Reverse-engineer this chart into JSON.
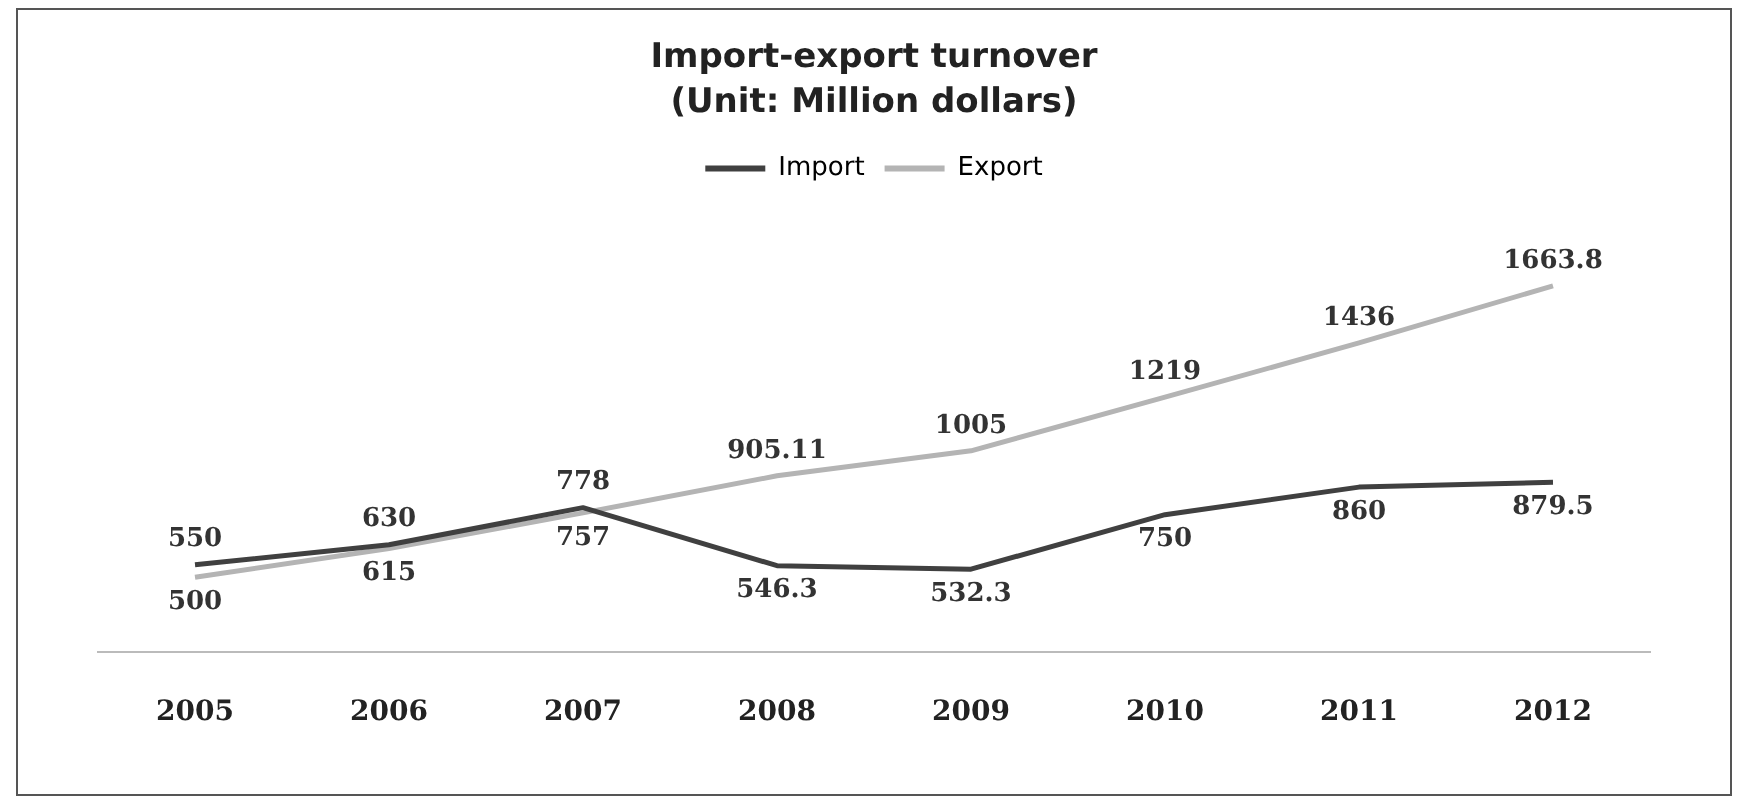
{
  "chart_data": {
    "type": "line",
    "title": "Import-export turnover",
    "subtitle": "(Unit: Million dollars)",
    "categories": [
      "2005",
      "2006",
      "2007",
      "2008",
      "2009",
      "2010",
      "2011",
      "2012"
    ],
    "series": [
      {
        "name": "Import",
        "color": "#404040",
        "values": [
          550,
          630,
          778,
          546.3,
          532.3,
          750,
          860,
          879.5
        ]
      },
      {
        "name": "Export",
        "color": "#b4b4b4",
        "values": [
          500,
          615,
          757,
          905.11,
          1005,
          1219,
          1436,
          1663.8
        ]
      }
    ],
    "data_labels": true,
    "legend": "top",
    "grid": false,
    "marker": "none",
    "line_style": "solid"
  }
}
